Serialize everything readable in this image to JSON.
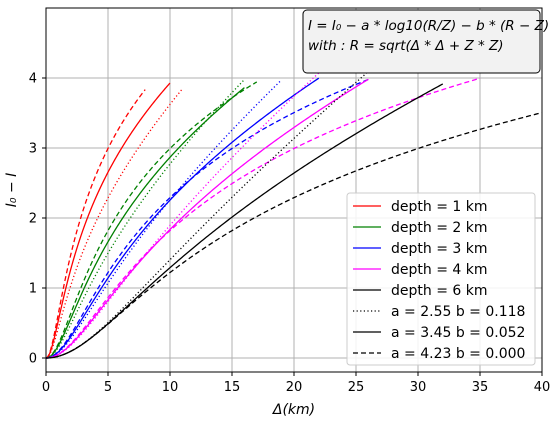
{
  "chart_data": {
    "type": "line",
    "xlabel": "Δ(km)",
    "ylabel": "I₀ − I",
    "xlim": [
      0,
      40
    ],
    "ylim": [
      -0.2,
      5.0
    ],
    "xticks": [
      0,
      5,
      10,
      15,
      20,
      25,
      30,
      35,
      40
    ],
    "yticks": [
      0,
      1,
      2,
      3,
      4
    ],
    "grid": true,
    "legend_position": "lower-right",
    "formula": {
      "line1": "I = I₀ − a * log10(R/Z) − b * (R − Z)",
      "line2": "with : R = sqrt(Δ * Δ + Z * Z)"
    },
    "colors": {
      "depth_1": "#ff0000",
      "depth_2": "#008000",
      "depth_3": "#0000ff",
      "depth_4": "#ff00ff",
      "depth_6": "#000000"
    },
    "legend": [
      {
        "label": "depth = 1 km",
        "color": "#ff0000",
        "style": "solid"
      },
      {
        "label": "depth = 2 km",
        "color": "#008000",
        "style": "solid"
      },
      {
        "label": "depth = 3 km",
        "color": "#0000ff",
        "style": "solid"
      },
      {
        "label": "depth = 4 km",
        "color": "#ff00ff",
        "style": "solid"
      },
      {
        "label": "depth = 6 km",
        "color": "#000000",
        "style": "solid"
      },
      {
        "label": "a = 2.55  b = 0.118",
        "color": "#000000",
        "style": "dotted"
      },
      {
        "label": "a = 3.45  b = 0.052",
        "color": "#000000",
        "style": "solid"
      },
      {
        "label": "a = 4.23  b = 0.000",
        "color": "#000000",
        "style": "dashed"
      }
    ],
    "series": [
      {
        "depth_km": 1,
        "a": 2.55,
        "b": 0.118,
        "style": "dotted",
        "color": "#ff0000",
        "x_max": 11
      },
      {
        "depth_km": 1,
        "a": 3.45,
        "b": 0.052,
        "style": "solid",
        "color": "#ff0000",
        "x_max": 10
      },
      {
        "depth_km": 1,
        "a": 4.23,
        "b": 0.0,
        "style": "dashed",
        "color": "#ff0000",
        "x_max": 8
      },
      {
        "depth_km": 2,
        "a": 2.55,
        "b": 0.118,
        "style": "dotted",
        "color": "#008000",
        "x_max": 16
      },
      {
        "depth_km": 2,
        "a": 3.45,
        "b": 0.052,
        "style": "solid",
        "color": "#008000",
        "x_max": 16
      },
      {
        "depth_km": 2,
        "a": 4.23,
        "b": 0.0,
        "style": "dashed",
        "color": "#008000",
        "x_max": 17
      },
      {
        "depth_km": 3,
        "a": 2.55,
        "b": 0.118,
        "style": "dotted",
        "color": "#0000ff",
        "x_max": 19
      },
      {
        "depth_km": 3,
        "a": 3.45,
        "b": 0.052,
        "style": "solid",
        "color": "#0000ff",
        "x_max": 22
      },
      {
        "depth_km": 3,
        "a": 4.23,
        "b": 0.0,
        "style": "dashed",
        "color": "#0000ff",
        "x_max": 26
      },
      {
        "depth_km": 4,
        "a": 2.55,
        "b": 0.118,
        "style": "dotted",
        "color": "#ff00ff",
        "x_max": 26
      },
      {
        "depth_km": 4,
        "a": 3.45,
        "b": 0.052,
        "style": "solid",
        "color": "#ff00ff",
        "x_max": 26
      },
      {
        "depth_km": 4,
        "a": 4.23,
        "b": 0.0,
        "style": "dashed",
        "color": "#ff00ff",
        "x_max": 35
      },
      {
        "depth_km": 6,
        "a": 2.55,
        "b": 0.118,
        "style": "dotted",
        "color": "#000000",
        "x_max": 26
      },
      {
        "depth_km": 6,
        "a": 3.45,
        "b": 0.052,
        "style": "solid",
        "color": "#000000",
        "x_max": 32
      },
      {
        "depth_km": 6,
        "a": 4.23,
        "b": 0.0,
        "style": "dashed",
        "color": "#000000",
        "x_max": 40
      }
    ]
  }
}
